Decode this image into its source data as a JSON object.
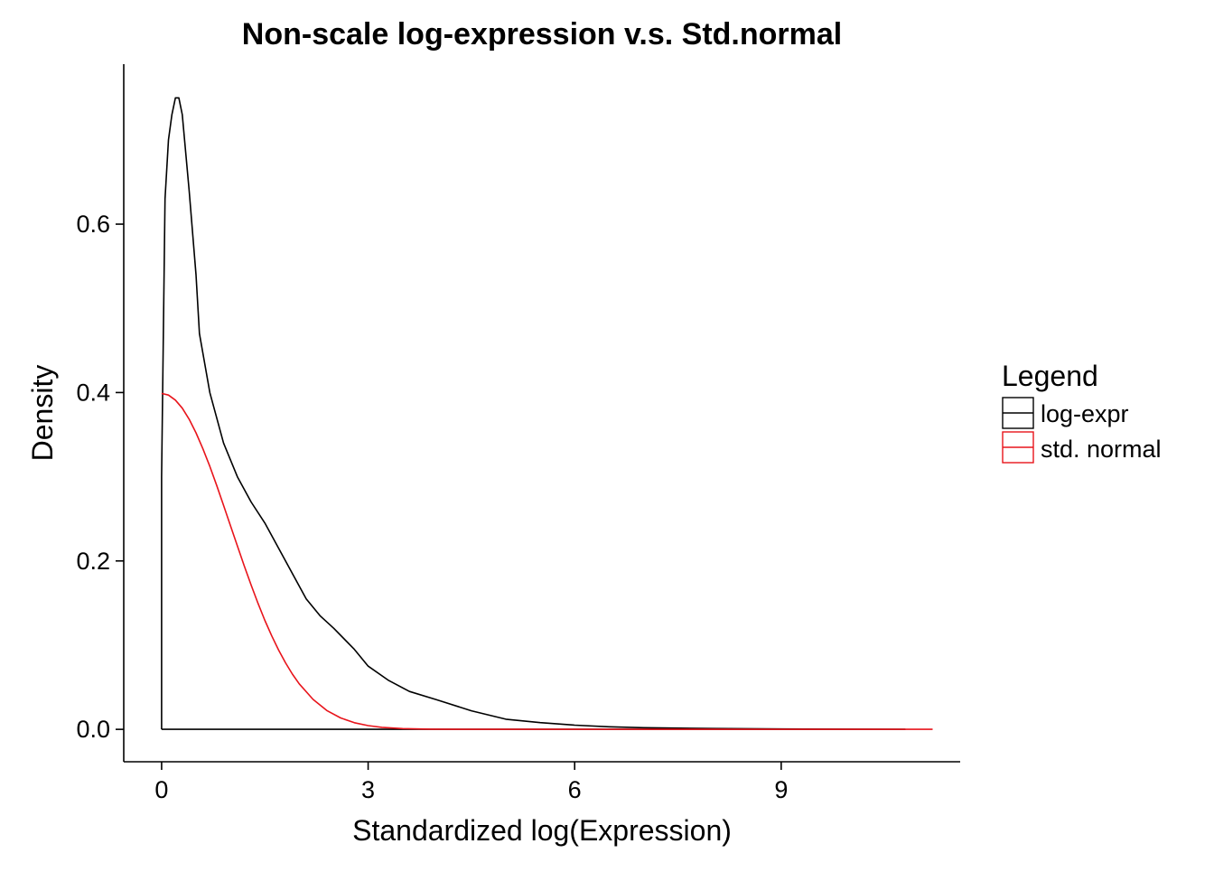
{
  "chart_data": {
    "type": "line",
    "title": "Non-scale log-expression v.s. Std.normal",
    "xlabel": "Standardized log(Expression)",
    "ylabel": "Density",
    "xlim": [
      -0.55,
      11.6
    ],
    "ylim": [
      -0.0385,
      0.79
    ],
    "x_ticks": [
      0,
      3,
      6,
      9
    ],
    "x_tick_labels": [
      "0",
      "3",
      "6",
      "9"
    ],
    "y_ticks": [
      0.0,
      0.2,
      0.4,
      0.6
    ],
    "y_tick_labels": [
      "0.0",
      "0.2",
      "0.4",
      "0.6"
    ],
    "grid": false,
    "legend": {
      "title": "Legend",
      "placement": "right"
    },
    "series": [
      {
        "name": "log-expr",
        "color": "#000000",
        "x": [
          0,
          0,
          0.05,
          0.1,
          0.15,
          0.2,
          0.25,
          0.3,
          0.4,
          0.5,
          0.55,
          0.7,
          0.9,
          1.1,
          1.3,
          1.5,
          1.8,
          2.1,
          2.3,
          2.5,
          2.8,
          3.0,
          3.3,
          3.6,
          4.0,
          4.5,
          5.0,
          5.5,
          6.0,
          6.5,
          7.0,
          8.0,
          9.0,
          10.0,
          10.8,
          10.8,
          0
        ],
        "y": [
          0,
          0.3,
          0.63,
          0.7,
          0.73,
          0.75,
          0.75,
          0.73,
          0.64,
          0.54,
          0.47,
          0.4,
          0.34,
          0.3,
          0.27,
          0.245,
          0.2,
          0.155,
          0.135,
          0.12,
          0.095,
          0.075,
          0.058,
          0.045,
          0.035,
          0.022,
          0.012,
          0.008,
          0.005,
          0.003,
          0.002,
          0.001,
          0.0005,
          0.0002,
          0.0001,
          0,
          0
        ]
      },
      {
        "name": "std. normal",
        "color": "#e8141b",
        "x": [
          0,
          0.1,
          0.2,
          0.3,
          0.4,
          0.5,
          0.6,
          0.7,
          0.8,
          0.9,
          1.0,
          1.1,
          1.2,
          1.3,
          1.4,
          1.5,
          1.6,
          1.7,
          1.8,
          1.9,
          2.0,
          2.2,
          2.4,
          2.6,
          2.8,
          3.0,
          3.2,
          3.5,
          3.9,
          4.5,
          6.0,
          8.0,
          10.0,
          11.2
        ],
        "y": [
          0.3989,
          0.397,
          0.391,
          0.3814,
          0.3683,
          0.3521,
          0.3332,
          0.3123,
          0.2897,
          0.2661,
          0.242,
          0.2179,
          0.1942,
          0.1714,
          0.1497,
          0.1295,
          0.1109,
          0.094,
          0.079,
          0.0656,
          0.054,
          0.0355,
          0.0224,
          0.0136,
          0.0079,
          0.0044,
          0.0024,
          0.0009,
          0.0002,
          2e-05,
          0,
          0,
          0,
          0
        ]
      }
    ]
  }
}
